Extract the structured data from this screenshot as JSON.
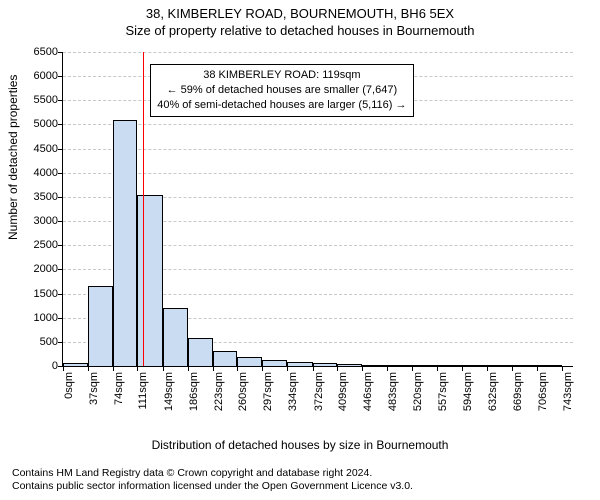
{
  "title": {
    "line1": "38, KIMBERLEY ROAD, BOURNEMOUTH, BH6 5EX",
    "line2": "Size of property relative to detached houses in Bournemouth"
  },
  "chart": {
    "type": "histogram",
    "ylabel": "Number of detached properties",
    "xlabel": "Distribution of detached houses by size in Bournemouth",
    "ylim": [
      0,
      6500
    ],
    "ytick_step": 500,
    "yticks": [
      0,
      500,
      1000,
      1500,
      2000,
      2500,
      3000,
      3500,
      4000,
      4500,
      5000,
      5500,
      6000,
      6500
    ],
    "xticks": [
      0,
      37,
      74,
      111,
      149,
      186,
      223,
      260,
      297,
      334,
      372,
      409,
      446,
      483,
      520,
      557,
      594,
      632,
      669,
      706,
      743
    ],
    "xtick_unit": "sqm",
    "xlim": [
      0,
      760
    ],
    "bar_color": "#c9dcf2",
    "bar_border_color": "#000000",
    "background_color": "#ffffff",
    "grid_color": "#c8c8c8",
    "bars": [
      {
        "x0": 0,
        "x1": 37,
        "count": 70
      },
      {
        "x0": 37,
        "x1": 74,
        "count": 1650
      },
      {
        "x0": 74,
        "x1": 111,
        "count": 5100
      },
      {
        "x0": 111,
        "x1": 149,
        "count": 3550
      },
      {
        "x0": 149,
        "x1": 186,
        "count": 1200
      },
      {
        "x0": 186,
        "x1": 223,
        "count": 580
      },
      {
        "x0": 223,
        "x1": 260,
        "count": 320
      },
      {
        "x0": 260,
        "x1": 297,
        "count": 180
      },
      {
        "x0": 297,
        "x1": 334,
        "count": 120
      },
      {
        "x0": 334,
        "x1": 372,
        "count": 80
      },
      {
        "x0": 372,
        "x1": 409,
        "count": 55
      },
      {
        "x0": 409,
        "x1": 446,
        "count": 45
      },
      {
        "x0": 446,
        "x1": 483,
        "count": 12
      },
      {
        "x0": 483,
        "x1": 520,
        "count": 8
      },
      {
        "x0": 520,
        "x1": 557,
        "count": 6
      },
      {
        "x0": 557,
        "x1": 594,
        "count": 5
      },
      {
        "x0": 594,
        "x1": 632,
        "count": 4
      },
      {
        "x0": 632,
        "x1": 669,
        "count": 3
      },
      {
        "x0": 669,
        "x1": 706,
        "count": 2
      },
      {
        "x0": 706,
        "x1": 743,
        "count": 2
      }
    ],
    "marker": {
      "value_sqm": 119,
      "color": "#ff0000",
      "line_width": 1
    },
    "annotation": {
      "line1": "38 KIMBERLEY ROAD: 119sqm",
      "line2": "← 59% of detached houses are smaller (7,647)",
      "line3": "40% of semi-detached houses are larger (5,116) →",
      "left_sqm": 130,
      "top_count": 6250
    }
  },
  "footer": {
    "line1": "Contains HM Land Registry data © Crown copyright and database right 2024.",
    "line2": "Contains public sector information licensed under the Open Government Licence v3.0."
  }
}
